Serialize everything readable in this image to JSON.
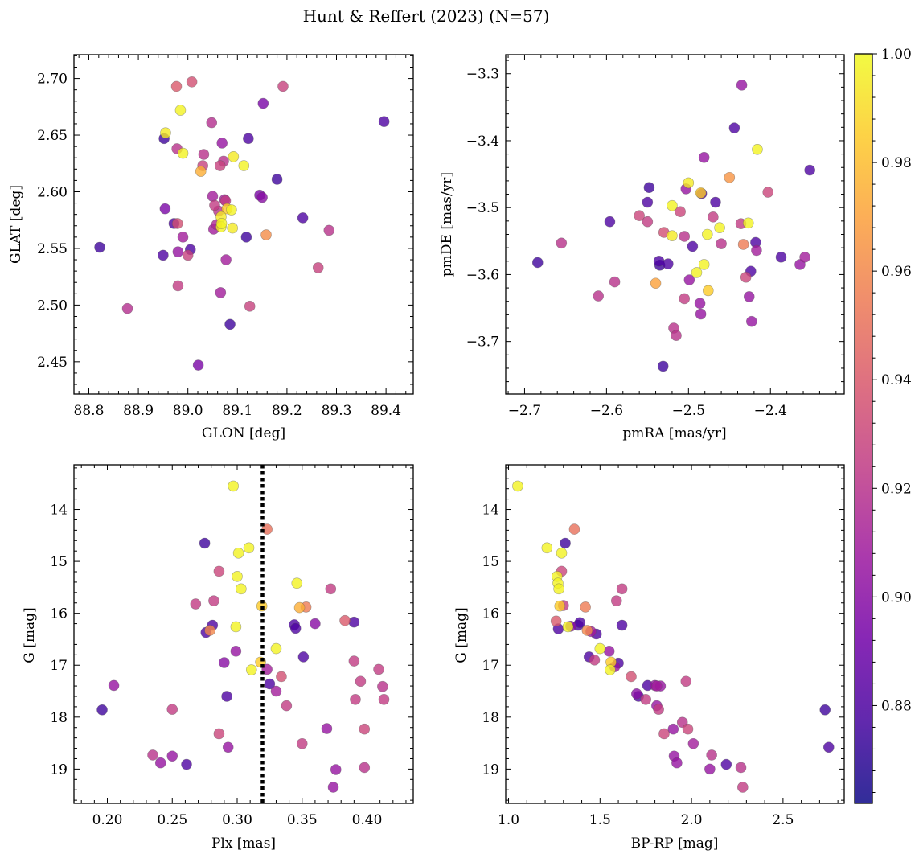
{
  "figure": {
    "title": "Hunt & Reffert (2023) (N=57)"
  },
  "colorbar": {
    "vmin": 0.862,
    "vmax": 1.0,
    "ticks": [
      0.88,
      0.9,
      0.92,
      0.94,
      0.96,
      0.98,
      1.0
    ],
    "tick_labels": [
      "0.88",
      "0.90",
      "0.92",
      "0.94",
      "0.96",
      "0.98",
      "1.00"
    ],
    "colormap": "plasma",
    "stops": [
      [
        "#0d0887",
        0.0
      ],
      [
        "#46039f",
        0.11
      ],
      [
        "#7201a8",
        0.22
      ],
      [
        "#9c179e",
        0.33
      ],
      [
        "#bd3786",
        0.44
      ],
      [
        "#d8576b",
        0.56
      ],
      [
        "#ed7953",
        0.67
      ],
      [
        "#fb9f3a",
        0.78
      ],
      [
        "#fdca26",
        0.89
      ],
      [
        "#f0f921",
        1.0
      ]
    ]
  },
  "chart_data": [
    {
      "type": "scatter",
      "xlabel": "GLON [deg]",
      "ylabel": "GLAT [deg]",
      "xlim": [
        88.77,
        89.455
      ],
      "ylim": [
        2.4215,
        2.721
      ],
      "y_inverted": false,
      "xticks": [
        88.8,
        88.9,
        89.0,
        89.1,
        89.2,
        89.3,
        89.4
      ],
      "xtick_labels": [
        "88.8",
        "88.9",
        "89.0",
        "89.1",
        "89.2",
        "89.3",
        "89.4"
      ],
      "yticks": [
        2.45,
        2.5,
        2.55,
        2.6,
        2.65,
        2.7
      ],
      "ytick_labels": [
        "2.45",
        "2.50",
        "2.55",
        "2.60",
        "2.65",
        "2.70"
      ],
      "points": [
        [
          88.822,
          2.551,
          0.875
        ],
        [
          88.878,
          2.497,
          0.918
        ],
        [
          88.95,
          2.544,
          0.88
        ],
        [
          88.952,
          2.647,
          0.875
        ],
        [
          88.954,
          2.585,
          0.895
        ],
        [
          88.955,
          2.652,
          0.995
        ],
        [
          88.972,
          2.572,
          0.88
        ],
        [
          88.977,
          2.693,
          0.94
        ],
        [
          88.978,
          2.638,
          0.92
        ],
        [
          88.979,
          2.572,
          0.935
        ],
        [
          88.98,
          2.517,
          0.925
        ],
        [
          88.98,
          2.547,
          0.905
        ],
        [
          88.985,
          2.672,
          0.998
        ],
        [
          88.99,
          2.634,
          0.998
        ],
        [
          89.0,
          2.544,
          0.928
        ],
        [
          89.005,
          2.549,
          0.88
        ],
        [
          89.008,
          2.697,
          0.935
        ],
        [
          89.021,
          2.447,
          0.895
        ],
        [
          89.026,
          2.618,
          0.975
        ],
        [
          89.03,
          2.623,
          0.928
        ],
        [
          89.032,
          2.633,
          0.92
        ],
        [
          89.048,
          2.661,
          0.918
        ],
        [
          89.05,
          2.596,
          0.91
        ],
        [
          89.052,
          2.567,
          0.91
        ],
        [
          89.054,
          2.588,
          0.925
        ],
        [
          89.058,
          2.571,
          0.915
        ],
        [
          89.062,
          2.583,
          0.92
        ],
        [
          89.065,
          2.623,
          0.928
        ],
        [
          89.066,
          2.511,
          0.91
        ],
        [
          89.067,
          2.578,
          0.995
        ],
        [
          89.067,
          2.569,
          0.998
        ],
        [
          89.068,
          2.572,
          0.998
        ],
        [
          89.069,
          2.643,
          0.905
        ],
        [
          89.072,
          2.627,
          0.92
        ],
        [
          89.074,
          2.593,
          0.91
        ],
        [
          89.076,
          2.592,
          0.925
        ],
        [
          89.077,
          2.54,
          0.91
        ],
        [
          89.079,
          2.585,
          0.985
        ],
        [
          89.085,
          2.483,
          0.875
        ],
        [
          89.088,
          2.584,
          0.998
        ],
        [
          89.092,
          2.631,
          0.995
        ],
        [
          89.113,
          2.623,
          0.998
        ],
        [
          89.118,
          2.56,
          0.875
        ],
        [
          89.122,
          2.647,
          0.88
        ],
        [
          89.125,
          2.499,
          0.928
        ],
        [
          89.145,
          2.597,
          0.895
        ],
        [
          89.152,
          2.678,
          0.895
        ],
        [
          89.158,
          2.562,
          0.962
        ],
        [
          89.18,
          2.611,
          0.875
        ],
        [
          89.192,
          2.693,
          0.928
        ],
        [
          89.232,
          2.577,
          0.88
        ],
        [
          89.263,
          2.533,
          0.928
        ],
        [
          89.285,
          2.566,
          0.92
        ],
        [
          89.396,
          2.662,
          0.88
        ],
        [
          89.15,
          2.595,
          0.9
        ],
        [
          89.09,
          2.568,
          0.995
        ],
        [
          88.99,
          2.56,
          0.91
        ]
      ]
    },
    {
      "type": "scatter",
      "xlabel": "pmRA [mas/yr]",
      "ylabel": "pmDE [mas/yr]",
      "xlim": [
        -2.723,
        -2.31
      ],
      "ylim": [
        -3.7785,
        -3.2715
      ],
      "y_inverted": false,
      "xticks": [
        -2.7,
        -2.6,
        -2.5,
        -2.4
      ],
      "xtick_labels": [
        "−2.7",
        "−2.6",
        "−2.5",
        "−2.4"
      ],
      "yticks": [
        -3.7,
        -3.6,
        -3.5,
        -3.4,
        -3.3
      ],
      "ytick_labels": [
        "−3.7",
        "−3.6",
        "−3.5",
        "−3.4",
        "−3.3"
      ],
      "points": [
        [
          -2.684,
          -3.582,
          0.875
        ],
        [
          -2.655,
          -3.553,
          0.92
        ],
        [
          -2.61,
          -3.632,
          0.92
        ],
        [
          -2.596,
          -3.521,
          0.88
        ],
        [
          -2.59,
          -3.611,
          0.92
        ],
        [
          -2.56,
          -3.512,
          0.93
        ],
        [
          -2.55,
          -3.521,
          0.925
        ],
        [
          -2.548,
          -3.47,
          0.875
        ],
        [
          -2.55,
          -3.492,
          0.88
        ],
        [
          -2.54,
          -3.613,
          0.97
        ],
        [
          -2.536,
          -3.58,
          0.88
        ],
        [
          -2.535,
          -3.586,
          0.875
        ],
        [
          -2.531,
          -3.737,
          0.875
        ],
        [
          -2.53,
          -3.537,
          0.935
        ],
        [
          -2.525,
          -3.584,
          0.88
        ],
        [
          -2.52,
          -3.542,
          0.995
        ],
        [
          -2.52,
          -3.497,
          0.998
        ],
        [
          -2.518,
          -3.68,
          0.92
        ],
        [
          -2.515,
          -3.691,
          0.92
        ],
        [
          -2.51,
          -3.506,
          0.93
        ],
        [
          -2.505,
          -3.636,
          0.925
        ],
        [
          -2.505,
          -3.543,
          0.92
        ],
        [
          -2.503,
          -3.472,
          0.905
        ],
        [
          -2.5,
          -3.463,
          0.995
        ],
        [
          -2.499,
          -3.608,
          0.905
        ],
        [
          -2.495,
          -3.558,
          0.88
        ],
        [
          -2.49,
          -3.597,
          0.998
        ],
        [
          -2.486,
          -3.643,
          0.905
        ],
        [
          -2.485,
          -3.659,
          0.905
        ],
        [
          -2.485,
          -3.478,
          0.985
        ],
        [
          -2.481,
          -3.425,
          0.905
        ],
        [
          -2.481,
          -3.585,
          0.998
        ],
        [
          -2.477,
          -3.54,
          0.998
        ],
        [
          -2.476,
          -3.624,
          0.985
        ],
        [
          -2.47,
          -3.514,
          0.925
        ],
        [
          -2.462,
          -3.53,
          0.998
        ],
        [
          -2.46,
          -3.554,
          0.92
        ],
        [
          -2.45,
          -3.455,
          0.965
        ],
        [
          -2.444,
          -3.381,
          0.88
        ],
        [
          -2.436,
          -3.524,
          0.925
        ],
        [
          -2.435,
          -3.317,
          0.905
        ],
        [
          -2.433,
          -3.555,
          0.955
        ],
        [
          -2.43,
          -3.604,
          0.93
        ],
        [
          -2.427,
          -3.523,
          0.998
        ],
        [
          -2.426,
          -3.633,
          0.905
        ],
        [
          -2.424,
          -3.595,
          0.88
        ],
        [
          -2.423,
          -3.67,
          0.905
        ],
        [
          -2.418,
          -3.552,
          0.88
        ],
        [
          -2.417,
          -3.564,
          0.91
        ],
        [
          -2.416,
          -3.413,
          0.998
        ],
        [
          -2.403,
          -3.477,
          0.93
        ],
        [
          -2.387,
          -3.574,
          0.88
        ],
        [
          -2.364,
          -3.585,
          0.905
        ],
        [
          -2.358,
          -3.574,
          0.91
        ],
        [
          -2.352,
          -3.444,
          0.88
        ],
        [
          -2.484,
          -3.479,
          0.88
        ],
        [
          -2.467,
          -3.492,
          0.88
        ]
      ]
    },
    {
      "type": "scatter",
      "xlabel": "Plx [mas]",
      "ylabel": "G [mag]",
      "xlim": [
        0.1743,
        0.4356
      ],
      "ylim": [
        13.14,
        19.66
      ],
      "y_inverted": true,
      "xticks": [
        0.2,
        0.25,
        0.3,
        0.35,
        0.4
      ],
      "xtick_labels": [
        "0.20",
        "0.25",
        "0.30",
        "0.35",
        "0.40"
      ],
      "yticks": [
        14,
        15,
        16,
        17,
        18,
        19
      ],
      "ytick_labels": [
        "14",
        "15",
        "16",
        "17",
        "18",
        "19"
      ],
      "vline": {
        "x": 0.3195,
        "style": "dotted"
      },
      "points": [
        [
          0.196,
          17.86,
          0.875
        ],
        [
          0.205,
          17.39,
          0.905
        ],
        [
          0.235,
          18.73,
          0.92
        ],
        [
          0.241,
          18.88,
          0.905
        ],
        [
          0.25,
          17.85,
          0.925
        ],
        [
          0.25,
          18.75,
          0.905
        ],
        [
          0.261,
          18.91,
          0.88
        ],
        [
          0.268,
          15.82,
          0.925
        ],
        [
          0.275,
          14.65,
          0.875
        ],
        [
          0.276,
          16.37,
          0.88
        ],
        [
          0.279,
          16.33,
          0.96
        ],
        [
          0.281,
          16.23,
          0.88
        ],
        [
          0.282,
          15.76,
          0.925
        ],
        [
          0.286,
          15.19,
          0.93
        ],
        [
          0.286,
          18.32,
          0.93
        ],
        [
          0.292,
          17.6,
          0.88
        ],
        [
          0.293,
          18.58,
          0.905
        ],
        [
          0.297,
          13.55,
          0.998
        ],
        [
          0.299,
          16.26,
          0.998
        ],
        [
          0.299,
          16.73,
          0.905
        ],
        [
          0.3,
          15.29,
          0.998
        ],
        [
          0.301,
          14.84,
          0.998
        ],
        [
          0.303,
          15.53,
          0.998
        ],
        [
          0.309,
          14.74,
          0.998
        ],
        [
          0.311,
          17.09,
          0.998
        ],
        [
          0.318,
          16.94,
          0.985
        ],
        [
          0.319,
          15.86,
          0.985
        ],
        [
          0.323,
          14.38,
          0.95
        ],
        [
          0.323,
          17.08,
          0.91
        ],
        [
          0.325,
          17.36,
          0.88
        ],
        [
          0.33,
          16.68,
          0.998
        ],
        [
          0.334,
          17.22,
          0.935
        ],
        [
          0.338,
          17.78,
          0.925
        ],
        [
          0.344,
          16.22,
          0.88
        ],
        [
          0.345,
          16.29,
          0.88
        ],
        [
          0.346,
          15.42,
          0.998
        ],
        [
          0.348,
          15.89,
          0.975
        ],
        [
          0.35,
          18.51,
          0.925
        ],
        [
          0.351,
          16.84,
          0.88
        ],
        [
          0.353,
          15.88,
          0.955
        ],
        [
          0.369,
          18.22,
          0.905
        ],
        [
          0.372,
          15.53,
          0.925
        ],
        [
          0.374,
          19.35,
          0.905
        ],
        [
          0.376,
          19.01,
          0.905
        ],
        [
          0.383,
          16.14,
          0.94
        ],
        [
          0.39,
          16.17,
          0.88
        ],
        [
          0.39,
          16.92,
          0.925
        ],
        [
          0.391,
          17.66,
          0.925
        ],
        [
          0.395,
          17.31,
          0.925
        ],
        [
          0.398,
          18.23,
          0.93
        ],
        [
          0.398,
          18.97,
          0.92
        ],
        [
          0.409,
          17.08,
          0.925
        ],
        [
          0.412,
          17.41,
          0.92
        ],
        [
          0.413,
          17.66,
          0.925
        ],
        [
          0.36,
          16.2,
          0.9
        ],
        [
          0.33,
          17.5,
          0.91
        ],
        [
          0.29,
          16.95,
          0.9
        ]
      ]
    },
    {
      "type": "scatter",
      "xlabel": "BP-RP [mag]",
      "ylabel": "G [mag]",
      "xlim": [
        0.9845,
        2.8345
      ],
      "ylim": [
        13.14,
        19.66
      ],
      "y_inverted": true,
      "xticks": [
        1.0,
        1.5,
        2.0,
        2.5
      ],
      "xtick_labels": [
        "1.0",
        "1.5",
        "2.0",
        "2.5"
      ],
      "yticks": [
        14,
        15,
        16,
        17,
        18,
        19
      ],
      "ytick_labels": [
        "14",
        "15",
        "16",
        "17",
        "18",
        "19"
      ],
      "points": [
        [
          1.05,
          13.55,
          0.998
        ],
        [
          1.21,
          14.74,
          0.998
        ],
        [
          1.26,
          16.15,
          0.94
        ],
        [
          1.265,
          15.29,
          0.998
        ],
        [
          1.27,
          15.42,
          0.998
        ],
        [
          1.272,
          16.3,
          0.88
        ],
        [
          1.275,
          15.53,
          0.998
        ],
        [
          1.28,
          15.86,
          0.985
        ],
        [
          1.29,
          14.84,
          0.998
        ],
        [
          1.29,
          15.19,
          0.93
        ],
        [
          1.3,
          15.85,
          0.925
        ],
        [
          1.31,
          14.65,
          0.875
        ],
        [
          1.325,
          16.26,
          0.998
        ],
        [
          1.36,
          14.38,
          0.95
        ],
        [
          1.38,
          16.23,
          0.88
        ],
        [
          1.39,
          16.18,
          0.88
        ],
        [
          1.42,
          15.88,
          0.955
        ],
        [
          1.43,
          16.33,
          0.96
        ],
        [
          1.44,
          16.84,
          0.88
        ],
        [
          1.47,
          16.9,
          0.925
        ],
        [
          1.48,
          16.4,
          0.88
        ],
        [
          1.5,
          16.68,
          0.998
        ],
        [
          1.55,
          16.73,
          0.905
        ],
        [
          1.555,
          17.09,
          0.998
        ],
        [
          1.56,
          16.94,
          0.985
        ],
        [
          1.58,
          17.03,
          0.905
        ],
        [
          1.59,
          15.76,
          0.925
        ],
        [
          1.6,
          16.96,
          0.88
        ],
        [
          1.62,
          15.53,
          0.925
        ],
        [
          1.62,
          16.23,
          0.88
        ],
        [
          1.67,
          17.22,
          0.935
        ],
        [
          1.71,
          17.6,
          0.88
        ],
        [
          1.75,
          17.66,
          0.925
        ],
        [
          1.76,
          17.39,
          0.88
        ],
        [
          1.8,
          17.39,
          0.905
        ],
        [
          1.81,
          17.78,
          0.905
        ],
        [
          1.81,
          17.4,
          0.91
        ],
        [
          1.82,
          17.85,
          0.925
        ],
        [
          1.83,
          17.4,
          0.905
        ],
        [
          1.85,
          18.32,
          0.93
        ],
        [
          1.9,
          18.23,
          0.905
        ],
        [
          1.905,
          18.75,
          0.905
        ],
        [
          1.92,
          18.88,
          0.905
        ],
        [
          1.97,
          17.31,
          0.925
        ],
        [
          1.98,
          18.23,
          0.93
        ],
        [
          2.01,
          18.51,
          0.91
        ],
        [
          2.1,
          19.0,
          0.905
        ],
        [
          2.11,
          18.73,
          0.92
        ],
        [
          2.19,
          18.91,
          0.88
        ],
        [
          2.27,
          18.97,
          0.92
        ],
        [
          2.28,
          19.35,
          0.925
        ],
        [
          2.73,
          17.86,
          0.875
        ],
        [
          2.75,
          18.58,
          0.88
        ],
        [
          1.34,
          16.25,
          0.9
        ],
        [
          1.45,
          16.35,
          0.91
        ],
        [
          1.7,
          17.55,
          0.9
        ],
        [
          1.95,
          18.1,
          0.92
        ]
      ]
    }
  ]
}
